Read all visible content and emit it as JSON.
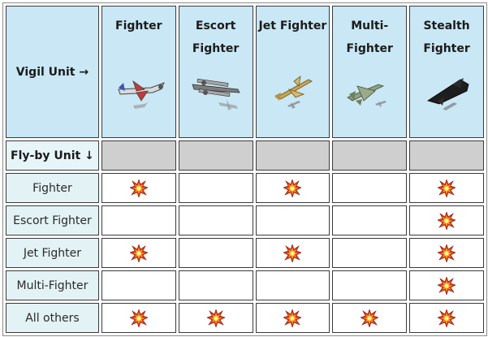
{
  "table": {
    "corner_label": "Vigil Unit →",
    "flyby_label": "Fly-by Unit ↓",
    "columns": [
      {
        "title": "Fighter",
        "plane_icon": "fighter-plane-icon"
      },
      {
        "title": "Escort Fighter",
        "plane_icon": "escort-fighter-plane-icon"
      },
      {
        "title": "Jet Fighter",
        "plane_icon": "jet-fighter-plane-icon"
      },
      {
        "title": "Multi-Fighter",
        "plane_icon": "multi-fighter-plane-icon"
      },
      {
        "title": "Stealth Fighter",
        "plane_icon": "stealth-fighter-plane-icon"
      }
    ],
    "rows": [
      {
        "label": "Fighter",
        "hits": [
          true,
          false,
          true,
          false,
          true
        ]
      },
      {
        "label": "Escort Fighter",
        "hits": [
          false,
          false,
          false,
          false,
          true
        ]
      },
      {
        "label": "Jet Fighter",
        "hits": [
          true,
          false,
          true,
          false,
          true
        ]
      },
      {
        "label": "Multi-Fighter",
        "hits": [
          false,
          false,
          false,
          false,
          true
        ]
      },
      {
        "label": "All others",
        "hits": [
          true,
          true,
          true,
          true,
          true
        ]
      }
    ],
    "hit_icon": "explosion-icon"
  },
  "colors": {
    "header_bg": "#c9e7f4",
    "row_label_bg": "#e2f2f5",
    "empty_header_bg": "#cfcfcf"
  }
}
